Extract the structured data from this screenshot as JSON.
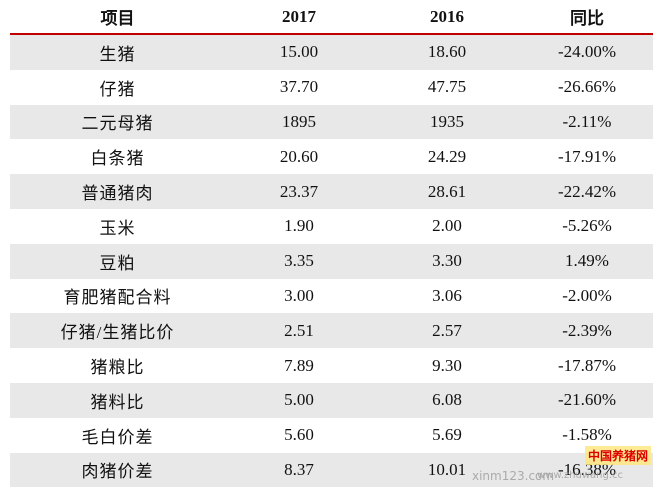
{
  "table": {
    "header": [
      "项目",
      "2017",
      "2016",
      "同比"
    ],
    "rows": [
      [
        "生猪",
        "15.00",
        "18.60",
        "-24.00%"
      ],
      [
        "仔猪",
        "37.70",
        "47.75",
        "-26.66%"
      ],
      [
        "二元母猪",
        "1895",
        "1935",
        "-2.11%"
      ],
      [
        "白条猪",
        "20.60",
        "24.29",
        "-17.91%"
      ],
      [
        "普通猪肉",
        "23.37",
        "28.61",
        "-22.42%"
      ],
      [
        "玉米",
        "1.90",
        "2.00",
        "-5.26%"
      ],
      [
        "豆粕",
        "3.35",
        "3.30",
        "1.49%"
      ],
      [
        "育肥猪配合料",
        "3.00",
        "3.06",
        "-2.00%"
      ],
      [
        "仔猪/生猪比价",
        "2.51",
        "2.57",
        "-2.39%"
      ],
      [
        "猪粮比",
        "7.89",
        "9.30",
        "-17.87%"
      ],
      [
        "猪料比",
        "5.00",
        "6.08",
        "-21.60%"
      ],
      [
        "毛白价差",
        "5.60",
        "5.69",
        "-1.58%"
      ],
      [
        "肉猪价差",
        "8.37",
        "10.01",
        "-16.38%"
      ]
    ]
  },
  "watermark": {
    "logo": "中国养猪网",
    "site": "www.zhuwang.cc",
    "source": "xinm123.com"
  }
}
